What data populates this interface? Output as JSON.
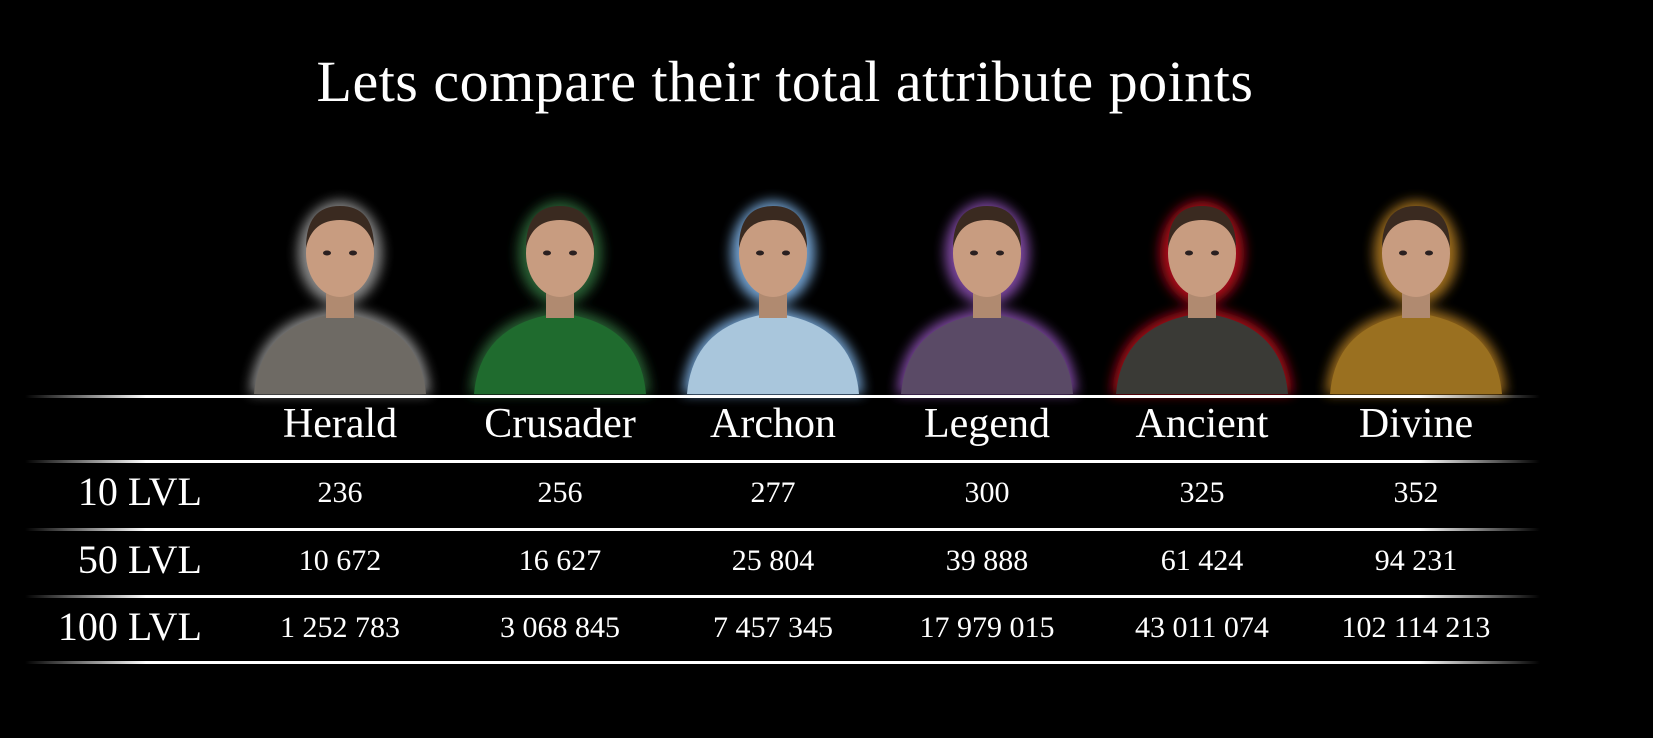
{
  "title": "Lets compare their total attribute points",
  "columns": [
    {
      "name": "Herald",
      "glow_color": "#9a9a9a",
      "cloth_color": "#6e6a64"
    },
    {
      "name": "Crusader",
      "glow_color": "#2f6b3a",
      "cloth_color": "#1f6b2e"
    },
    {
      "name": "Archon",
      "glow_color": "#7fb2e6",
      "cloth_color": "#a9c6dc"
    },
    {
      "name": "Legend",
      "glow_color": "#8a4fb0",
      "cloth_color": "#5a4a66"
    },
    {
      "name": "Ancient",
      "glow_color": "#c0101a",
      "cloth_color": "#3a3a36"
    },
    {
      "name": "Divine",
      "glow_color": "#b07a20",
      "cloth_color": "#9a7020"
    }
  ],
  "rows": [
    {
      "label": "10 LVL",
      "values": [
        "236",
        "256",
        "277",
        "300",
        "325",
        "352"
      ]
    },
    {
      "label": "50 LVL",
      "values": [
        "10 672",
        "16 627",
        "25 804",
        "39 888",
        "61 424",
        "94 231"
      ]
    },
    {
      "label": "100 LVL",
      "values": [
        "1 252 783",
        "3 068 845",
        "7 457 345",
        "17 979 015",
        "43 011 074",
        "102 114 213"
      ]
    }
  ]
}
